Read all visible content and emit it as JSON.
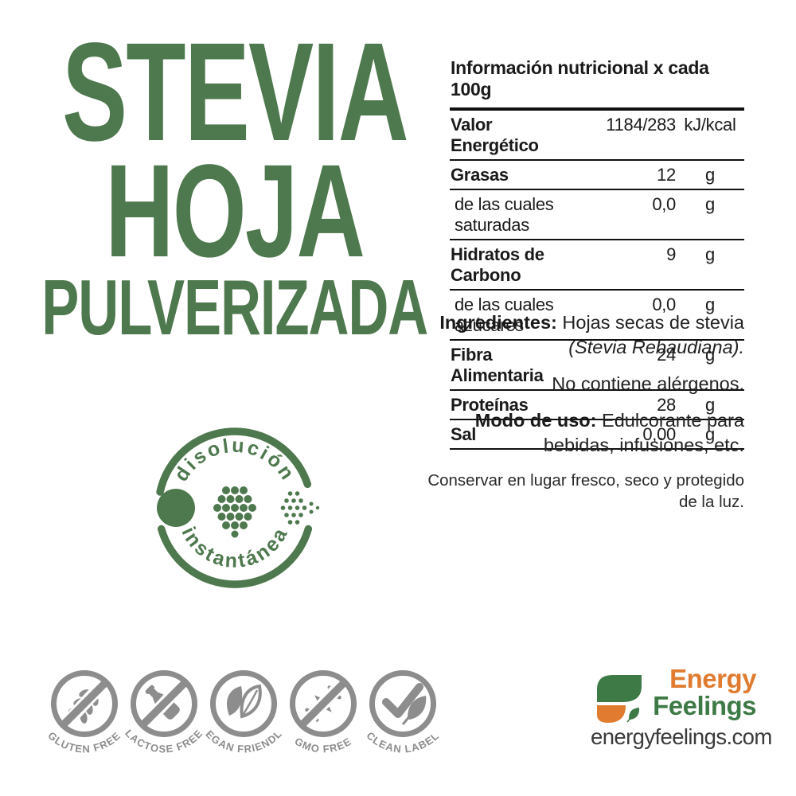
{
  "colors": {
    "title_green": "#4E784D",
    "badge_green": "#4E784D",
    "icon_gray": "#8D8D8D",
    "logo_orange": "#E07B30",
    "logo_green": "#3E7A45",
    "text_black": "#1A1A1A"
  },
  "title": {
    "line1": "STEVIA",
    "line2": "HOJA",
    "line3": "PULVERIZADA"
  },
  "nutrition": {
    "header": "Información nutricional x cada 100g",
    "rows": [
      {
        "label": "Valor Energético",
        "value": "1184/283",
        "unit": "kJ/kcal",
        "bold": true
      },
      {
        "label": "Grasas",
        "value": "12",
        "unit": "g",
        "bold": true
      },
      {
        "label": "de las cuales saturadas",
        "value": "0,0",
        "unit": "g",
        "bold": false
      },
      {
        "label": "Hidratos de Carbono",
        "value": "9",
        "unit": "g",
        "bold": true
      },
      {
        "label": "de las cuales azúcares",
        "value": "0,0",
        "unit": "g",
        "bold": false
      },
      {
        "label": "Fibra Alimentaria",
        "value": "24",
        "unit": "g",
        "bold": true
      },
      {
        "label": "Proteínas",
        "value": "28",
        "unit": "g",
        "bold": true
      },
      {
        "label": "Sal",
        "value": "0,00",
        "unit": "g",
        "bold": true
      }
    ]
  },
  "info": {
    "ingredients_label": "Ingredientes:",
    "ingredients_text": " Hojas secas de stevia",
    "ingredients_latin": "(Stevia Rebaudiana).",
    "allergens": "No contiene alérgenos.",
    "usage_label": "Modo de uso:",
    "usage_text": " Edulcorante para bebidas, infusiones, etc.",
    "storage": "Conservar en lugar fresco, seco y protegido de la luz."
  },
  "badge": {
    "top_text": "disolución",
    "bottom_text": "instantánea"
  },
  "certifications": [
    {
      "label": "GLUTEN FREE",
      "icon": "wheat",
      "crossed": true
    },
    {
      "label": "LACTOSE FREE",
      "icon": "bottle",
      "crossed": true
    },
    {
      "label": "VEGAN FRIENDLY",
      "icon": "leaves",
      "crossed": false
    },
    {
      "label": "GMO FREE",
      "icon": "dna",
      "crossed": true
    },
    {
      "label": "CLEAN LABEL",
      "icon": "check-leaf",
      "crossed": false
    }
  ],
  "brand": {
    "name_part1": "Energy",
    "name_part2": "Feelings",
    "website": "energyfeelings.com"
  }
}
